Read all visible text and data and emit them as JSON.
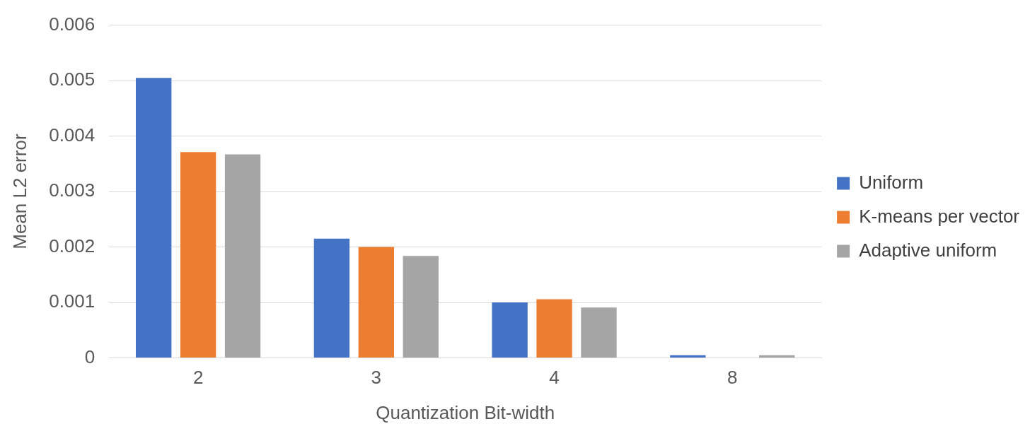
{
  "chart_data": {
    "type": "bar",
    "xlabel": "Quantization Bit-width",
    "ylabel": "Mean L2 error",
    "categories": [
      "2",
      "3",
      "4",
      "8"
    ],
    "series": [
      {
        "name": "Uniform",
        "color": "#4472c4",
        "values": [
          0.00505,
          0.00215,
          0.001,
          5e-05
        ]
      },
      {
        "name": "K-means per vector",
        "color": "#ed7d31",
        "values": [
          0.00371,
          0.002,
          0.00106,
          0
        ]
      },
      {
        "name": "Adaptive uniform",
        "color": "#a5a5a5",
        "values": [
          0.00367,
          0.00184,
          0.00091,
          5e-05
        ]
      }
    ],
    "ylim": [
      0,
      0.006
    ],
    "yticks": [
      0,
      0.001,
      0.002,
      0.003,
      0.004,
      0.005,
      0.006
    ],
    "grid": "y",
    "legend": "right"
  }
}
